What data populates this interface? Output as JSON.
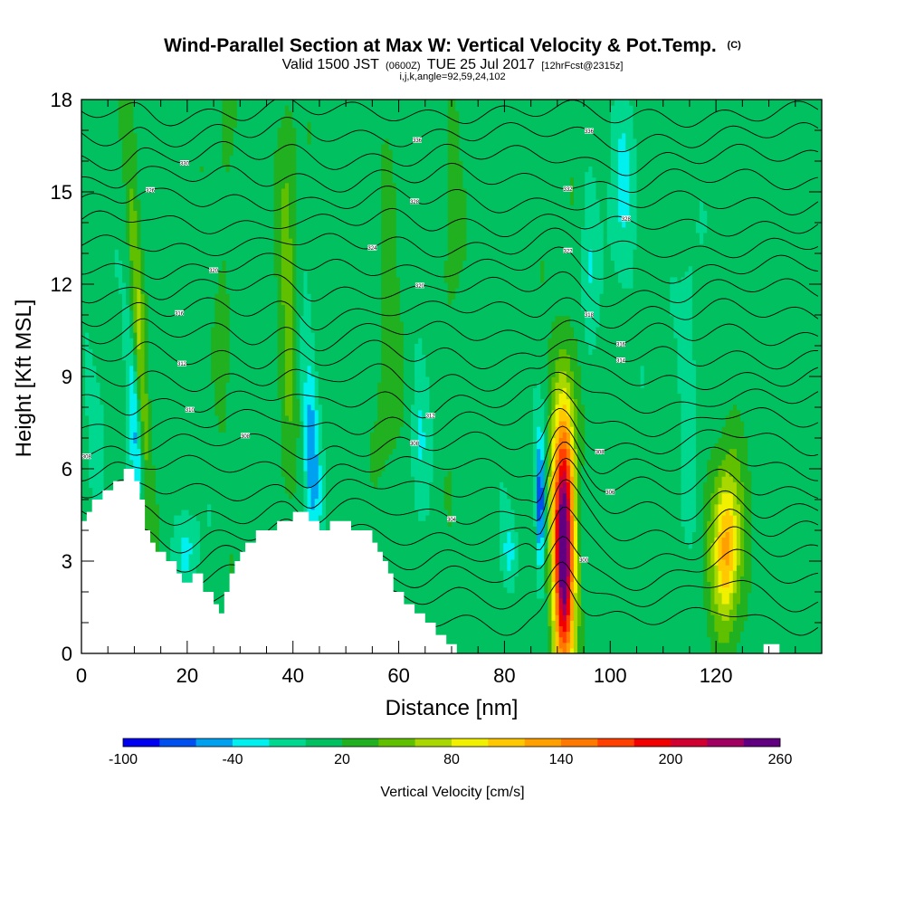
{
  "header": {
    "title": "Wind-Parallel Section at Max W: Vertical Velocity & Pot.Temp.",
    "copyright": "(C)",
    "valid_prefix": "Valid 1500 JST",
    "valid_utc": "(0600Z)",
    "valid_date": "TUE 25 Jul 2017",
    "forecast": "[12hrFcst@2315z]",
    "params": "i,j,k,angle=92,59,24,102"
  },
  "chart_data": {
    "type": "heatmap",
    "xlabel": "Distance [nm]",
    "ylabel": "Height [Kft MSL]",
    "xlim": [
      0,
      140
    ],
    "ylim": [
      0,
      18
    ],
    "x_ticks": [
      0,
      20,
      40,
      60,
      80,
      100,
      120
    ],
    "y_ticks": [
      0,
      3,
      6,
      9,
      12,
      15,
      18
    ],
    "background_value_cm_s": 10,
    "terrain_kft": [
      [
        0,
        4.3
      ],
      [
        1,
        4.3
      ],
      [
        1,
        4.6
      ],
      [
        2,
        4.6
      ],
      [
        2,
        5.0
      ],
      [
        4,
        5.0
      ],
      [
        4,
        5.3
      ],
      [
        6,
        5.3
      ],
      [
        6,
        5.6
      ],
      [
        8,
        5.6
      ],
      [
        8,
        6.0
      ],
      [
        10,
        6.0
      ],
      [
        10,
        5.6
      ],
      [
        11,
        5.6
      ],
      [
        11,
        5.0
      ],
      [
        12,
        5.0
      ],
      [
        12,
        4.0
      ],
      [
        13,
        4.0
      ],
      [
        13,
        3.6
      ],
      [
        14,
        3.6
      ],
      [
        14,
        3.3
      ],
      [
        16,
        3.3
      ],
      [
        16,
        3.0
      ],
      [
        18,
        3.0
      ],
      [
        18,
        2.6
      ],
      [
        19,
        2.6
      ],
      [
        19,
        2.3
      ],
      [
        21,
        2.3
      ],
      [
        21,
        2.6
      ],
      [
        23,
        2.6
      ],
      [
        23,
        2.0
      ],
      [
        25,
        2.0
      ],
      [
        25,
        1.6
      ],
      [
        26,
        1.6
      ],
      [
        26,
        1.3
      ],
      [
        27,
        1.3
      ],
      [
        27,
        2.0
      ],
      [
        28,
        2.0
      ],
      [
        28,
        2.6
      ],
      [
        29,
        2.6
      ],
      [
        29,
        3.0
      ],
      [
        30,
        3.0
      ],
      [
        30,
        3.3
      ],
      [
        31,
        3.3
      ],
      [
        31,
        3.6
      ],
      [
        33,
        3.6
      ],
      [
        33,
        4.0
      ],
      [
        37,
        4.0
      ],
      [
        37,
        4.3
      ],
      [
        40,
        4.3
      ],
      [
        40,
        4.6
      ],
      [
        43,
        4.6
      ],
      [
        43,
        4.3
      ],
      [
        45,
        4.3
      ],
      [
        45,
        4.0
      ],
      [
        47,
        4.0
      ],
      [
        47,
        4.3
      ],
      [
        51,
        4.3
      ],
      [
        51,
        4.0
      ],
      [
        55,
        4.0
      ],
      [
        55,
        3.6
      ],
      [
        56,
        3.6
      ],
      [
        56,
        3.3
      ],
      [
        57,
        3.3
      ],
      [
        57,
        3.0
      ],
      [
        58,
        3.0
      ],
      [
        58,
        2.6
      ],
      [
        59,
        2.6
      ],
      [
        59,
        2.0
      ],
      [
        61,
        2.0
      ],
      [
        61,
        1.6
      ],
      [
        63,
        1.6
      ],
      [
        63,
        1.3
      ],
      [
        65,
        1.3
      ],
      [
        65,
        1.0
      ],
      [
        67,
        1.0
      ],
      [
        67,
        0.6
      ],
      [
        69,
        0.6
      ],
      [
        69,
        0.3
      ],
      [
        71,
        0.3
      ],
      [
        71,
        0.0
      ],
      [
        129,
        0.0
      ],
      [
        129,
        0.3
      ],
      [
        132,
        0.3
      ],
      [
        132,
        0.0
      ],
      [
        140,
        0.0
      ]
    ],
    "features": [
      {
        "x": 11,
        "z": 9.5,
        "sx": 0.9,
        "sz": 4.8,
        "tilt": -0.25,
        "value": 55
      },
      {
        "x": 10.3,
        "z": 7.5,
        "sx": 0.9,
        "sz": 2.5,
        "tilt": -0.3,
        "value": -60
      },
      {
        "x": 20,
        "z": 3.4,
        "sx": 1.5,
        "sz": 0.9,
        "tilt": 0,
        "value": -35
      },
      {
        "x": 43.5,
        "z": 6.5,
        "sx": 1.1,
        "sz": 2.4,
        "tilt": -0.2,
        "value": -60
      },
      {
        "x": 39,
        "z": 12,
        "sx": 1.3,
        "sz": 5,
        "tilt": 0,
        "value": 35
      },
      {
        "x": 64,
        "z": 7,
        "sx": 1.2,
        "sz": 2.2,
        "tilt": 0,
        "value": -25
      },
      {
        "x": 58,
        "z": 10,
        "sx": 1.4,
        "sz": 3,
        "tilt": 0,
        "value": 30
      },
      {
        "x": 81,
        "z": 3.3,
        "sx": 1.1,
        "sz": 0.8,
        "tilt": 0,
        "value": -35
      },
      {
        "x": 86.8,
        "z": 5,
        "sx": 0.55,
        "sz": 1.6,
        "tilt": 0,
        "value": -95
      },
      {
        "x": 91.2,
        "z": 3.6,
        "sx": 1.6,
        "sz": 3.4,
        "tilt": 0,
        "value": 215
      },
      {
        "x": 91.2,
        "z": 3.3,
        "sx": 0.7,
        "sz": 1.6,
        "tilt": 0,
        "value": 75
      },
      {
        "x": 102,
        "z": 15,
        "sx": 1.8,
        "sz": 2.8,
        "tilt": 0,
        "value": -30
      },
      {
        "x": 96,
        "z": 12,
        "sx": 1.1,
        "sz": 2.5,
        "tilt": 0,
        "value": -25
      },
      {
        "x": 122,
        "z": 3.5,
        "sx": 2.1,
        "sz": 2.2,
        "tilt": 0,
        "value": 85
      },
      {
        "x": 122,
        "z": 3.3,
        "sx": 1.2,
        "sz": 1.3,
        "tilt": 0,
        "value": 35
      },
      {
        "x": 115,
        "z": 9,
        "sx": 1.3,
        "sz": 3,
        "tilt": 0,
        "value": -25
      },
      {
        "x": 27,
        "z": 13,
        "sx": 1.2,
        "sz": 4,
        "tilt": 0,
        "value": 18
      },
      {
        "x": 70,
        "z": 14,
        "sx": 1.2,
        "sz": 4,
        "tilt": 0,
        "value": 18
      },
      {
        "x": 3,
        "z": 7,
        "sx": 1.3,
        "sz": 1.5,
        "tilt": 0,
        "value": -25
      }
    ],
    "theta_contours": {
      "count": 24,
      "base_kft": 1.0,
      "spacing_kft": 0.72,
      "labels": [
        {
          "x": 1,
          "level": 8,
          "text": "308"
        },
        {
          "x": 20.5,
          "level": 10,
          "text": "310"
        },
        {
          "x": 31,
          "level": 8,
          "text": "308"
        },
        {
          "x": 19,
          "level": 12,
          "text": "312"
        },
        {
          "x": 18.5,
          "level": 14,
          "text": "316"
        },
        {
          "x": 25,
          "level": 16,
          "text": "320"
        },
        {
          "x": 13,
          "level": 19,
          "text": "326"
        },
        {
          "x": 19.5,
          "level": 21,
          "text": "330"
        },
        {
          "x": 63.5,
          "level": 22,
          "text": "336"
        },
        {
          "x": 63,
          "level": 19,
          "text": "328"
        },
        {
          "x": 55,
          "level": 17,
          "text": "324"
        },
        {
          "x": 64,
          "level": 15,
          "text": "320"
        },
        {
          "x": 66,
          "level": 10,
          "text": "312"
        },
        {
          "x": 63,
          "level": 8,
          "text": "308"
        },
        {
          "x": 70,
          "level": 5,
          "text": "304"
        },
        {
          "x": 96,
          "level": 22,
          "text": "336"
        },
        {
          "x": 92,
          "level": 20,
          "text": "332"
        },
        {
          "x": 103,
          "level": 18,
          "text": "328"
        },
        {
          "x": 92,
          "level": 16,
          "text": "322"
        },
        {
          "x": 96,
          "level": 14,
          "text": "318"
        },
        {
          "x": 102,
          "level": 13,
          "text": "316"
        },
        {
          "x": 102,
          "level": 12,
          "text": "314"
        },
        {
          "x": 98,
          "level": 8,
          "text": "308"
        },
        {
          "x": 100,
          "level": 6,
          "text": "306"
        },
        {
          "x": 95,
          "level": 2,
          "text": "300"
        }
      ]
    },
    "colorbar": {
      "label": "Vertical Velocity [cm/s]",
      "min": -100,
      "max": 260,
      "step": 20,
      "tick_values": [
        -100,
        -40,
        20,
        80,
        140,
        200,
        260
      ],
      "tick_labels": [
        "-100",
        "-40",
        "20",
        "80",
        "140",
        "200",
        "260"
      ],
      "colors": [
        "#0000f0",
        "#0050f0",
        "#00a0f0",
        "#00f0f0",
        "#00d890",
        "#00c060",
        "#20b020",
        "#60c000",
        "#a8d800",
        "#f0f000",
        "#ffc800",
        "#ffa000",
        "#ff7800",
        "#ff4000",
        "#f00000",
        "#d00030",
        "#a00060",
        "#600080"
      ]
    }
  }
}
